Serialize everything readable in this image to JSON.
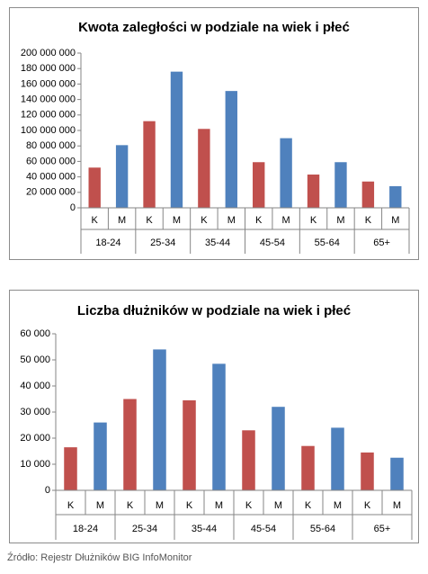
{
  "chart_data": [
    {
      "type": "bar",
      "title": "Kwota zaległości w podziale na wiek i płeć",
      "categories": [
        "K",
        "M",
        "K",
        "M",
        "K",
        "M",
        "K",
        "M",
        "K",
        "M",
        "K",
        "M"
      ],
      "groups": [
        "18-24",
        "25-34",
        "35-44",
        "45-54",
        "55-64",
        "65+"
      ],
      "values": [
        52000000,
        81000000,
        112000000,
        176000000,
        102000000,
        151000000,
        59000000,
        90000000,
        43000000,
        59000000,
        34000000,
        28000000
      ],
      "bar_colors": [
        "#c0504d",
        "#4f81bd",
        "#c0504d",
        "#4f81bd",
        "#c0504d",
        "#4f81bd",
        "#c0504d",
        "#4f81bd",
        "#c0504d",
        "#4f81bd",
        "#c0504d",
        "#4f81bd"
      ],
      "ylim": [
        0,
        200000000
      ],
      "yticks": [
        0,
        {
          "value": 20000000,
          "label": "20 000 000"
        },
        {
          "value": 40000000,
          "label": "40 000 000"
        },
        {
          "value": 60000000,
          "label": "60 000 000"
        },
        {
          "value": 80000000,
          "label": "80 000 000"
        },
        {
          "value": 100000000,
          "label": "100 000 000"
        },
        {
          "value": 120000000,
          "label": "120 000 000"
        },
        {
          "value": 140000000,
          "label": "140 000 000"
        },
        {
          "value": 160000000,
          "label": "160 000 000"
        },
        {
          "value": 180000000,
          "label": "180 000 000"
        },
        {
          "value": 200000000,
          "label": "200 000 000"
        }
      ]
    },
    {
      "type": "bar",
      "title": "Liczba dłużników w podziale na wiek i płeć",
      "categories": [
        "K",
        "M",
        "K",
        "M",
        "K",
        "M",
        "K",
        "M",
        "K",
        "M",
        "K",
        "M"
      ],
      "groups": [
        "18-24",
        "25-34",
        "35-44",
        "45-54",
        "55-64",
        "65+"
      ],
      "values": [
        16500,
        26000,
        35000,
        54000,
        34500,
        48500,
        23000,
        32000,
        17000,
        24000,
        14500,
        12500
      ],
      "bar_colors": [
        "#c0504d",
        "#4f81bd",
        "#c0504d",
        "#4f81bd",
        "#c0504d",
        "#4f81bd",
        "#c0504d",
        "#4f81bd",
        "#c0504d",
        "#4f81bd",
        "#c0504d",
        "#4f81bd"
      ],
      "ylim": [
        0,
        60000
      ],
      "yticks": [
        0,
        {
          "value": 10000,
          "label": "10 000"
        },
        {
          "value": 20000,
          "label": "20 000"
        },
        {
          "value": 30000,
          "label": "30 000"
        },
        {
          "value": 40000,
          "label": "40 000"
        },
        {
          "value": 50000,
          "label": "50 000"
        },
        {
          "value": 60000,
          "label": "60 000"
        }
      ]
    }
  ],
  "source": "Źródło: Rejestr Dłużników BIG InfoMonitor"
}
